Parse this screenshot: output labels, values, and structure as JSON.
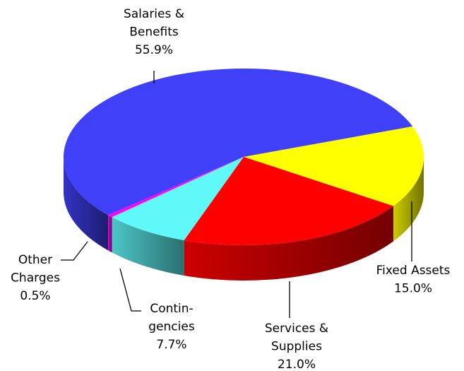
{
  "chart_data": {
    "type": "pie",
    "categories": [
      [
        "Salaries &",
        "Benefits"
      ],
      [
        "Fixed Assets"
      ],
      [
        "Services &",
        "Supplies"
      ],
      [
        "Contin-",
        "gencies"
      ],
      [
        "Other",
        "Charges"
      ]
    ],
    "values": [
      55.9,
      15.0,
      21.0,
      7.7,
      0.5
    ],
    "value_labels": [
      "55.9%",
      "15.0%",
      "21.0%",
      "7.7%",
      "0.5%"
    ],
    "colors": [
      "#4040f8",
      "#ffff00",
      "#ff0000",
      "#60f8f8",
      "#ff00ff"
    ]
  }
}
